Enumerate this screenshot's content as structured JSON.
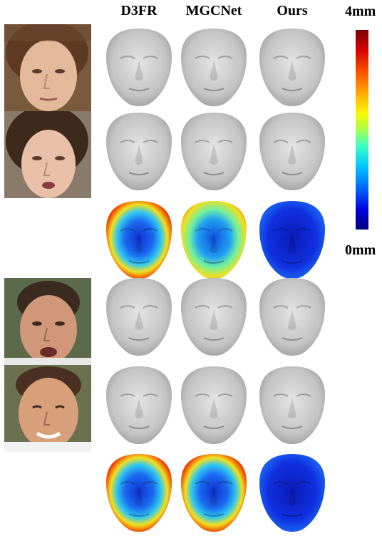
{
  "figure": {
    "columns": [
      "D3FR",
      "MGCNet",
      "Ours"
    ],
    "scale": {
      "max_label": "4mm",
      "min_label": "0mm"
    },
    "colormap": "jet",
    "rows": [
      {
        "type": "photo-row",
        "subject": 1,
        "photo": "subject1-neutral",
        "renders": [
          "gray-face-render",
          "gray-face-render",
          "gray-face-render"
        ]
      },
      {
        "type": "photo-row",
        "subject": 1,
        "photo": "subject1-expression",
        "renders": [
          "gray-face-render",
          "gray-face-render",
          "gray-face-render"
        ]
      },
      {
        "type": "error-row",
        "subject": 1,
        "error_level": [
          "high",
          "medium",
          "low"
        ]
      },
      {
        "type": "photo-row",
        "subject": 2,
        "photo": "subject2-neutral",
        "renders": [
          "gray-face-render",
          "gray-face-render",
          "gray-face-render"
        ]
      },
      {
        "type": "photo-row",
        "subject": 2,
        "photo": "subject2-expression",
        "renders": [
          "gray-face-render",
          "gray-face-render",
          "gray-face-render"
        ]
      },
      {
        "type": "error-row",
        "subject": 2,
        "error_level": [
          "high",
          "high",
          "low"
        ]
      }
    ]
  },
  "colors": {
    "render_gray": "#c8c8c8",
    "error_high": "#d81800",
    "error_medium": "#e8e020",
    "error_low": "#0c2ad8",
    "face_blue": "#1030c8"
  }
}
